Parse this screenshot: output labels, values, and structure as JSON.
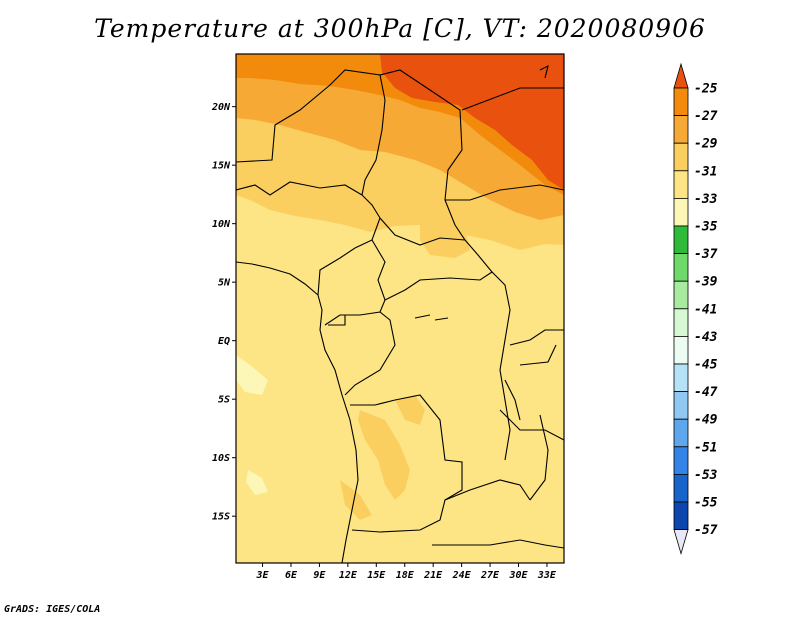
{
  "title": "Temperature at 300hPa [C], VT: 2020080906",
  "credit": "GrADS: IGES/COLA",
  "map": {
    "lat_labels": [
      "20N",
      "15N",
      "10N",
      "5N",
      "EQ",
      "5S",
      "10S",
      "15S"
    ],
    "lat_values": [
      20,
      15,
      10,
      5,
      0,
      -5,
      -10,
      -15
    ],
    "lon_labels": [
      "3E",
      "6E",
      "9E",
      "12E",
      "15E",
      "18E",
      "21E",
      "24E",
      "27E",
      "30E",
      "33E"
    ],
    "lon_values": [
      3,
      6,
      9,
      12,
      15,
      18,
      21,
      24,
      27,
      30,
      33
    ],
    "lat_range": [
      -19,
      24.5
    ],
    "lon_range": [
      0.2,
      34.8
    ]
  },
  "colorbar": {
    "labels": [
      "-25",
      "-27",
      "-29",
      "-31",
      "-33",
      "-35",
      "-37",
      "-39",
      "-41",
      "-43",
      "-45",
      "-47",
      "-49",
      "-51",
      "-53",
      "-55",
      "-57"
    ],
    "colors": [
      "#e8520e",
      "#f28a0c",
      "#f6aa35",
      "#fbcf5f",
      "#fde585",
      "#fcf7b7",
      "#2fba3a",
      "#6fd96a",
      "#a8eba0",
      "#d6f8d2",
      "#ecfcf2",
      "#b6e2f7",
      "#8ec8f3",
      "#5fa7ed",
      "#3384e6",
      "#1765cb",
      "#0d46ad",
      "#0c1678",
      "#e8e8f7"
    ]
  }
}
